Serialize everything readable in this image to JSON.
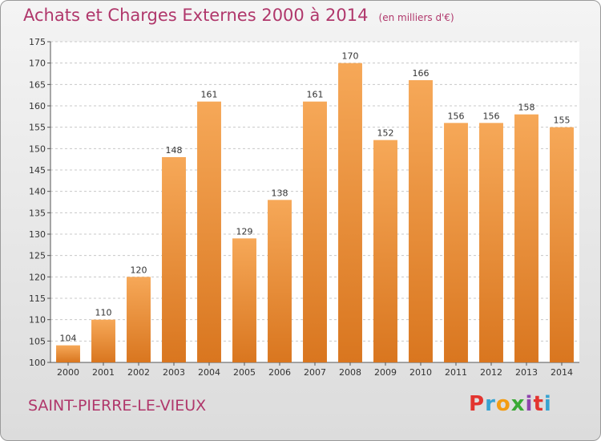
{
  "header": {
    "title": "Achats et Charges Externes 2000 à 2014",
    "unit": "(en milliers d'€)"
  },
  "footer": {
    "place": "SAINT-PIERRE-LE-VIEUX",
    "brand": "Proxiti",
    "brand_colors": [
      "#e3342f",
      "#38a3d1",
      "#f39c12",
      "#3aaa35",
      "#8e44ad",
      "#e3342f",
      "#38a3d1"
    ]
  },
  "colors": {
    "title": "#b0376b",
    "bar_light": "#f6a858",
    "bar_dark": "#d9761f"
  },
  "chart_data": {
    "type": "bar",
    "title": "Achats et Charges Externes 2000 à 2014",
    "categories": [
      "2000",
      "2001",
      "2002",
      "2003",
      "2004",
      "2005",
      "2006",
      "2007",
      "2008",
      "2009",
      "2010",
      "2011",
      "2012",
      "2013",
      "2014"
    ],
    "values": [
      104,
      110,
      120,
      148,
      161,
      129,
      138,
      161,
      170,
      152,
      166,
      156,
      156,
      158,
      155
    ],
    "ylim": [
      100,
      175
    ],
    "yticks": [
      100,
      105,
      110,
      115,
      120,
      125,
      130,
      135,
      140,
      145,
      150,
      155,
      160,
      165,
      170,
      175
    ],
    "grid": true
  }
}
